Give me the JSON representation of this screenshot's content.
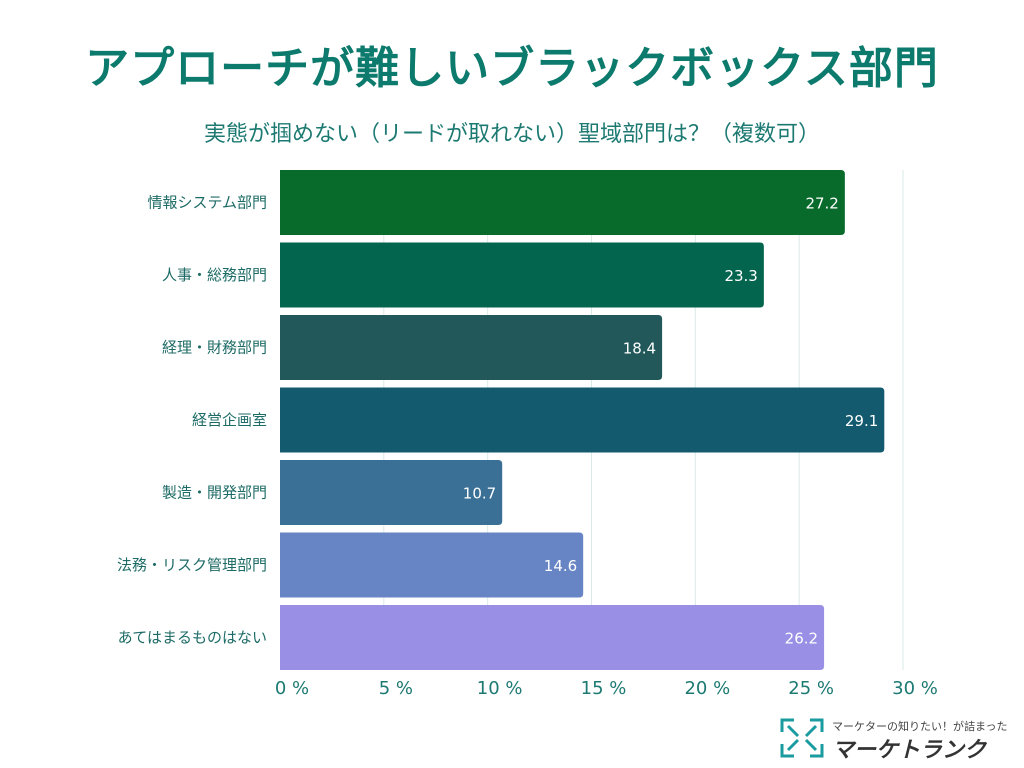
{
  "chart_data": {
    "type": "bar",
    "orientation": "horizontal",
    "title": "アプローチが難しいブラックボックス部門",
    "subtitle": "実態が掴めない（リードが取れない）聖域部門は？（複数可）",
    "categories": [
      "情報システム部門",
      "人事・総務部門",
      "経理・財務部門",
      "経営企画室",
      "製造・開発部門",
      "法務・リスク管理部門",
      "あてはまるものはない"
    ],
    "values": [
      27.2,
      23.3,
      18.4,
      29.1,
      10.7,
      14.6,
      26.2
    ],
    "colors": [
      "#086b2b",
      "#04654f",
      "#22585a",
      "#135a6f",
      "#3b7096",
      "#6785c4",
      "#9990e6"
    ],
    "xlim": [
      0,
      30
    ],
    "xticks": [
      "0 %",
      "5 %",
      "10 %",
      "15 %",
      "20 %",
      "25 %",
      "30 %"
    ],
    "grid": true
  },
  "logo": {
    "tagline": "マーケターの知りたい！が詰まった",
    "name": "マーケトランク"
  }
}
